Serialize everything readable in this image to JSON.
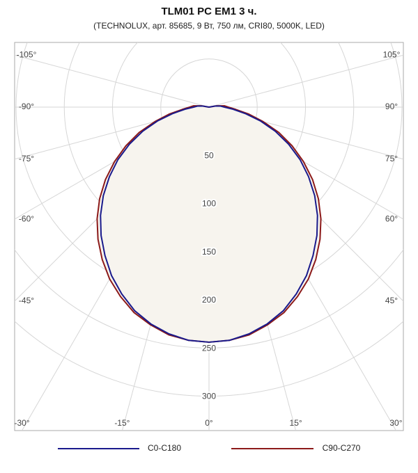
{
  "chart_data": {
    "type": "polar",
    "title": "TLM01 PC EM1 3 ч.",
    "subtitle": "(TECHNOLUX, арт. 85685, 9 Вт, 750 лм, CRI80, 5000K, LED)",
    "angles": [
      0,
      5,
      10,
      15,
      20,
      25,
      30,
      35,
      40,
      45,
      50,
      55,
      60,
      65,
      70,
      75,
      80,
      85,
      90,
      95,
      100,
      105
    ],
    "series": [
      {
        "name": "C0-C180",
        "color": "#1a1a8c",
        "values": [
          244,
          243,
          239,
          233,
          225,
          214,
          202,
          188,
          174,
          159,
          143,
          126,
          109,
          91,
          73,
          55,
          38,
          25,
          16,
          12,
          6,
          0
        ]
      },
      {
        "name": "C90-C270",
        "color": "#8c1a1a",
        "values": [
          244,
          243,
          240,
          234,
          227,
          217,
          206,
          193,
          179,
          164,
          148,
          131,
          113,
          95,
          77,
          58,
          42,
          28,
          20,
          16,
          8,
          0
        ]
      }
    ],
    "rlim": [
      0,
      300
    ],
    "rticks": [
      50,
      100,
      150,
      200,
      250,
      300
    ],
    "angle_ticks": [
      {
        "value": -105,
        "label": "-105°"
      },
      {
        "value": -90,
        "label": "-90°"
      },
      {
        "value": -75,
        "label": "-75°"
      },
      {
        "value": -60,
        "label": "-60°"
      },
      {
        "value": -45,
        "label": "-45°"
      },
      {
        "value": -30,
        "label": "-30°"
      },
      {
        "value": -15,
        "label": "-15°"
      },
      {
        "value": 0,
        "label": "0°"
      },
      {
        "value": 15,
        "label": "15°"
      },
      {
        "value": 30,
        "label": "30°"
      },
      {
        "value": 45,
        "label": "45°"
      },
      {
        "value": 60,
        "label": "60°"
      },
      {
        "value": 75,
        "label": "75°"
      },
      {
        "value": 90,
        "label": "90°"
      },
      {
        "value": 105,
        "label": "105°"
      }
    ],
    "fill_color": "#f7f4ee"
  }
}
